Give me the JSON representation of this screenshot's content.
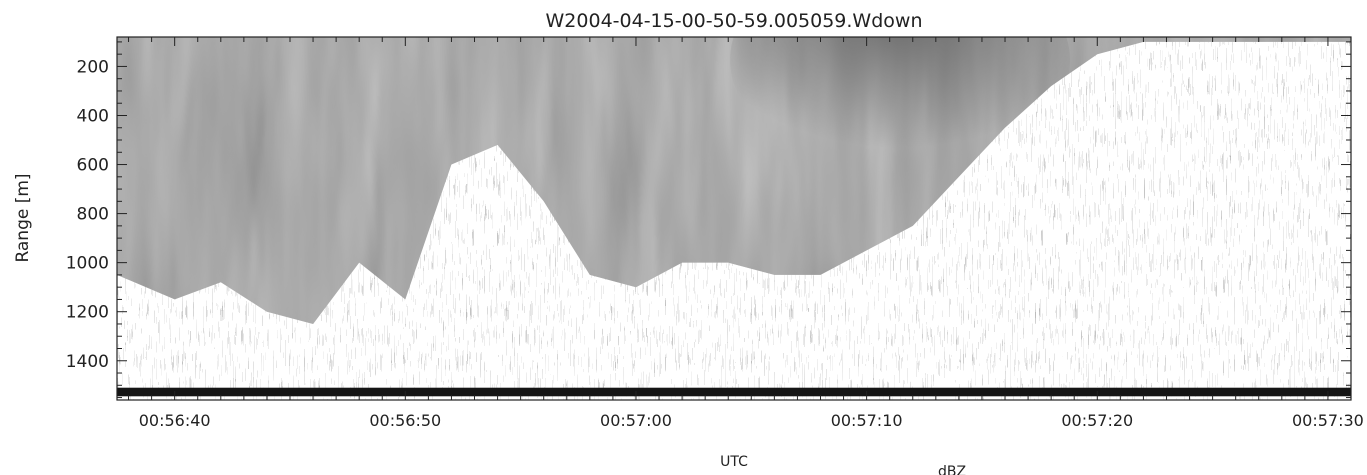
{
  "chart_data": {
    "type": "heatmap",
    "title": "W2004-04-15-00-50-59.005059.Wdown",
    "xlabel": "UTC",
    "ylabel": "Range [m]",
    "colorbar_label": "dBZ",
    "x_ticks": [
      "00:56:40",
      "00:56:50",
      "00:57:00",
      "00:57:10",
      "00:57:20",
      "00:57:30"
    ],
    "x_tick_seconds": [
      0,
      10,
      20,
      30,
      40,
      50
    ],
    "xlim_seconds": [
      -2.5,
      51.0
    ],
    "y_ticks": [
      200,
      400,
      600,
      800,
      1000,
      1200,
      1400
    ],
    "ylim": [
      80,
      1560
    ],
    "y_inverted": false,
    "grayscale": true,
    "echo_boundary": {
      "time_seconds": [
        -2.5,
        0,
        2,
        4,
        6,
        8,
        10,
        12,
        14,
        16,
        18,
        20,
        22,
        24,
        26,
        28,
        30,
        32,
        34,
        36,
        38,
        40,
        42,
        44,
        51
      ],
      "range_m": [
        1050,
        1150,
        1080,
        1200,
        1250,
        1000,
        1150,
        600,
        520,
        750,
        1050,
        1100,
        1000,
        1000,
        1050,
        1050,
        950,
        850,
        650,
        450,
        280,
        150,
        100,
        100,
        100
      ]
    },
    "ground_clutter_band_m": [
      1510,
      1545
    ]
  }
}
